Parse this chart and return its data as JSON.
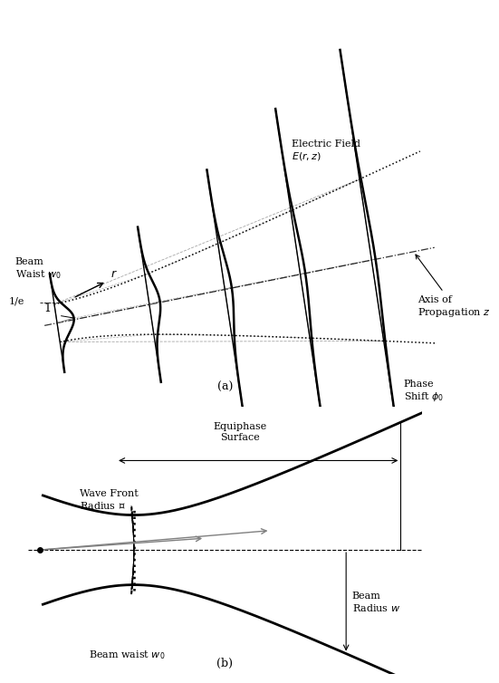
{
  "fig_width": 4.63,
  "fig_height": 7.46,
  "bg_color": "#ffffff",
  "label_a": "(a)",
  "label_b": "(b)",
  "panel_a": {
    "label_r": "$r$",
    "label_1": "1",
    "label_1e": "1/e",
    "label_ef": "Electric Field\n$E(r,z)$",
    "label_beam_waist": "Beam\nWaist $w_0$",
    "label_axis": "Axis of\nPropagation $z$"
  },
  "panel_b": {
    "label_wavefront": "Wave Front\nRadius $\\mathcal{R}$",
    "label_equiphase": "Equiphase\nSurface",
    "label_phase_shift": "Phase\nShift $\\phi_0$",
    "label_beam_radius": "Beam\nRadius $w$",
    "label_beam_waist": "Beam waist $w_0$"
  }
}
